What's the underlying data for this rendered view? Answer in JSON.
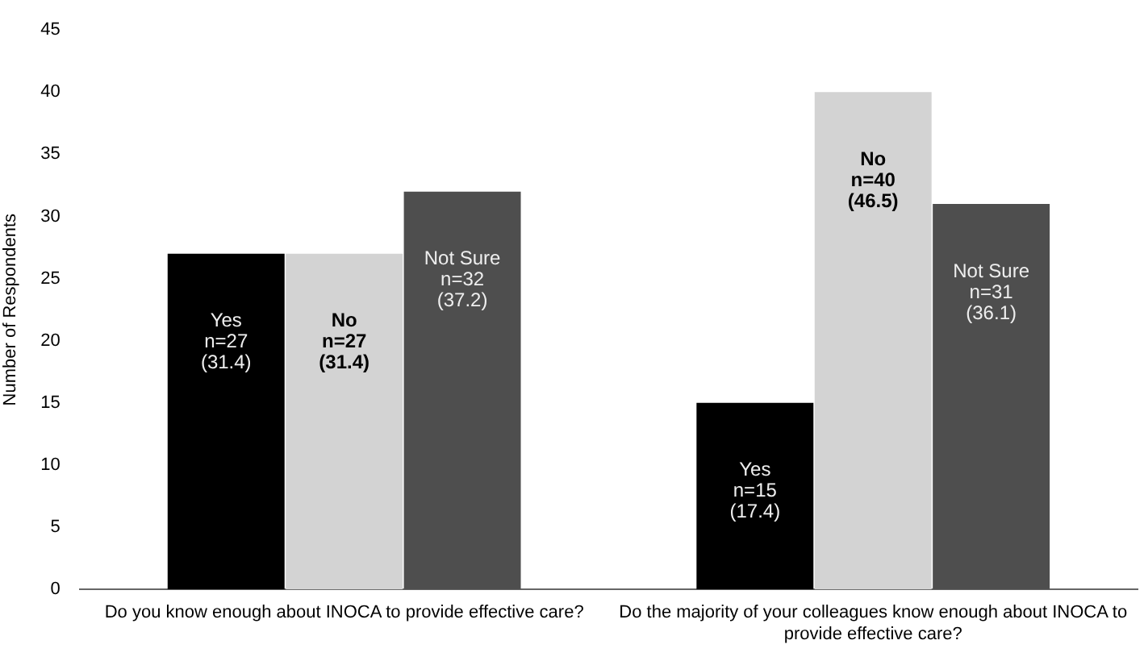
{
  "chart_data": {
    "type": "bar",
    "ylabel": "Number of Respondents",
    "categories": [
      "Do you know enough about INOCA to provide effective care?",
      "Do the majority of your colleagues know enough about INOCA to provide effective care?"
    ],
    "series": [
      {
        "name": "Yes",
        "color": "#000000",
        "values": [
          27,
          15
        ],
        "value_labels": [
          "n=27\n(31.4)",
          "n=15\n(17.4)"
        ]
      },
      {
        "name": "No",
        "color": "#d3d3d3",
        "values": [
          27,
          40
        ],
        "value_labels": [
          "n=27\n(31.4)",
          "n=40\n(46.5)"
        ]
      },
      {
        "name": "Not Sure",
        "color": "#4e4e4e",
        "values": [
          32,
          31
        ],
        "value_labels": [
          "n=32\n(37.2)",
          "n=31\n(36.1)"
        ]
      }
    ],
    "ylim": [
      0,
      45
    ],
    "yticks": [
      0,
      5,
      10,
      15,
      20,
      25,
      30,
      35,
      40,
      45
    ],
    "grid": false,
    "legend": false
  }
}
